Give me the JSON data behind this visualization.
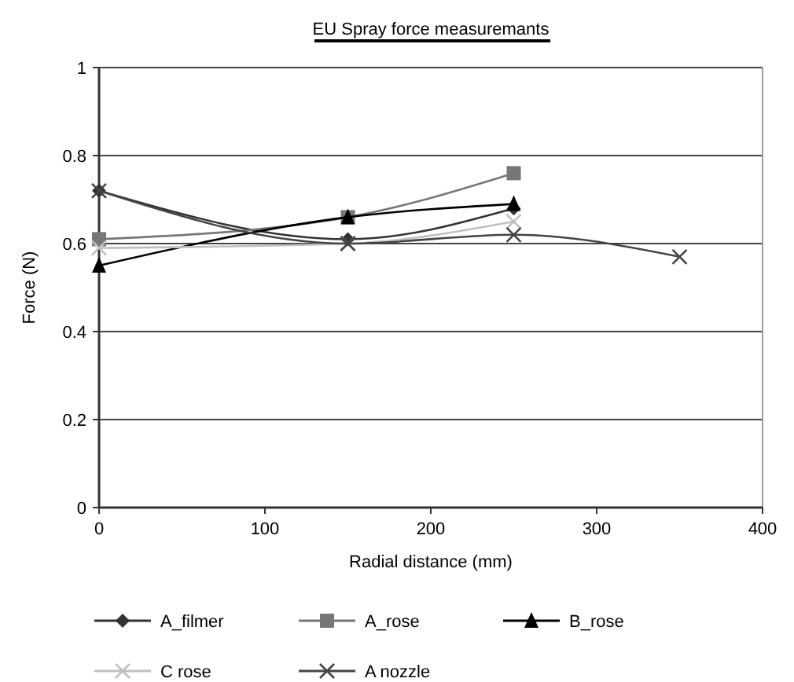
{
  "chart_data": {
    "type": "line",
    "title": "EU Spray force measuremants",
    "xlabel": "Radial distance (mm)",
    "ylabel": "Force (N)",
    "xlim": [
      0,
      400
    ],
    "xticks": [
      0,
      100,
      200,
      300,
      400
    ],
    "ylim": [
      0,
      1
    ],
    "yticks": [
      0,
      0.2,
      0.4,
      0.6,
      0.8,
      1
    ],
    "grid": "y",
    "legend": "bottom",
    "series": [
      {
        "name": "A_filmer",
        "color": "#333333",
        "marker": "diamond",
        "x": [
          0,
          150,
          250
        ],
        "values": [
          0.72,
          0.61,
          0.68
        ]
      },
      {
        "name": "A_rose",
        "color": "#777777",
        "marker": "square",
        "x": [
          0,
          150,
          250
        ],
        "values": [
          0.61,
          0.66,
          0.76
        ]
      },
      {
        "name": "B_rose",
        "color": "#000000",
        "marker": "triangle",
        "x": [
          0,
          150,
          250
        ],
        "values": [
          0.55,
          0.66,
          0.69
        ]
      },
      {
        "name": "C rose",
        "color": "#c0c0c0",
        "marker": "cross",
        "x": [
          0,
          150,
          250
        ],
        "values": [
          0.59,
          0.6,
          0.65
        ]
      },
      {
        "name": "A nozzle",
        "color": "#444444",
        "marker": "cross",
        "x": [
          0,
          150,
          250,
          350
        ],
        "values": [
          0.72,
          0.6,
          0.62,
          0.57
        ]
      }
    ]
  }
}
